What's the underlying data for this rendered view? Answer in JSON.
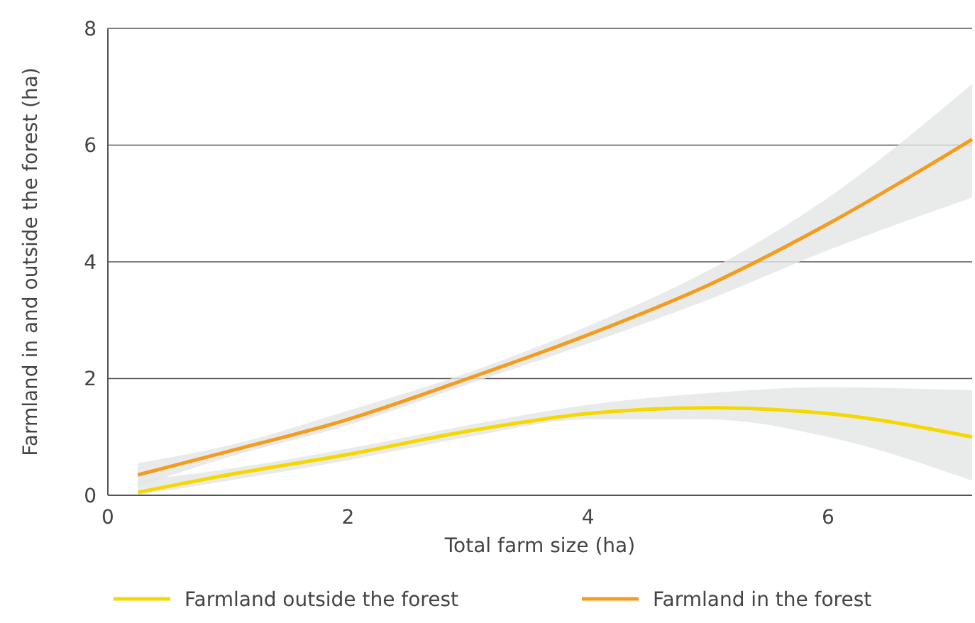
{
  "chart_data": {
    "type": "line",
    "xlabel": "Total farm size (ha)",
    "ylabel": "Farmland in and outside the forest (ha)",
    "xlim": [
      0,
      7.2
    ],
    "ylim": [
      0,
      8
    ],
    "xticks": [
      0,
      2,
      4,
      6
    ],
    "yticks": [
      0,
      2,
      4,
      6,
      8
    ],
    "grid": "y",
    "legend": "bottom",
    "marker": "none",
    "line_style": "solid",
    "series": [
      {
        "name": "Farmland outside the forest",
        "color": "#f5d800",
        "x": [
          0.25,
          1,
          2,
          3,
          4,
          5,
          6,
          7.2
        ],
        "values": [
          0.05,
          0.35,
          0.7,
          1.1,
          1.4,
          1.5,
          1.4,
          1.0
        ],
        "lower": [
          0,
          0.25,
          0.6,
          1.0,
          1.3,
          1.3,
          1.0,
          0.25
        ],
        "upper": [
          0.25,
          0.45,
          0.8,
          1.2,
          1.55,
          1.75,
          1.85,
          1.8
        ]
      },
      {
        "name": "Farmland in the forest",
        "color": "#f39c1f",
        "x": [
          0.25,
          1,
          2,
          3,
          4,
          5,
          6,
          7.2
        ],
        "values": [
          0.35,
          0.75,
          1.3,
          2.0,
          2.75,
          3.6,
          4.65,
          6.1
        ],
        "lower": [
          0.15,
          0.65,
          1.2,
          1.9,
          2.6,
          3.35,
          4.2,
          5.1
        ],
        "upper": [
          0.55,
          0.85,
          1.45,
          2.1,
          2.9,
          3.85,
          5.1,
          7.05
        ]
      }
    ]
  }
}
